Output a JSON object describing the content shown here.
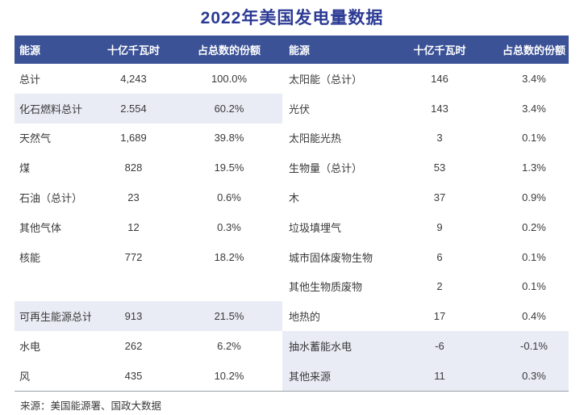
{
  "title": "2022年美国发电量数据",
  "source": "来源：美国能源署、国政大数据",
  "colors": {
    "title_text": "#2B3A94",
    "header_bg": "#3B5296",
    "header_text": "#FFFFFF",
    "row_highlight_bg": "#E9ECF5",
    "body_text": "#3A3A3A"
  },
  "chart_data": {
    "type": "table",
    "title": "2022年美国发电量数据",
    "source_note": "来源：美国能源署、国政大数据",
    "columns": [
      "能源",
      "十亿千瓦时",
      "占总数的份额"
    ],
    "left_rows": [
      {
        "name": "总计",
        "value": "4,243",
        "share": "100.0%",
        "highlight": false
      },
      {
        "name": "化石燃料总计",
        "value": "2.554",
        "share": "60.2%",
        "highlight": true
      },
      {
        "name": "天然气",
        "value": "1,689",
        "share": "39.8%",
        "highlight": false
      },
      {
        "name": "煤",
        "value": "828",
        "share": "19.5%",
        "highlight": false
      },
      {
        "name": "石油（总计）",
        "value": "23",
        "share": "0.6%",
        "highlight": false
      },
      {
        "name": "其他气体",
        "value": "12",
        "share": "0.3%",
        "highlight": false
      },
      {
        "name": "核能",
        "value": "772",
        "share": "18.2%",
        "highlight": false
      },
      {
        "name": "",
        "value": "",
        "share": "",
        "highlight": false
      },
      {
        "name": "可再生能源总计",
        "value": "913",
        "share": "21.5%",
        "highlight": true
      },
      {
        "name": "水电",
        "value": "262",
        "share": "6.2%",
        "highlight": false
      },
      {
        "name": "风",
        "value": "435",
        "share": "10.2%",
        "highlight": false
      }
    ],
    "right_rows": [
      {
        "name": "太阳能（总计）",
        "value": "146",
        "share": "3.4%",
        "highlight": false
      },
      {
        "name": "光伏",
        "value": "143",
        "share": "3.4%",
        "highlight": false
      },
      {
        "name": "太阳能光热",
        "value": "3",
        "share": "0.1%",
        "highlight": false
      },
      {
        "name": "生物量（总计）",
        "value": "53",
        "share": "1.3%",
        "highlight": false
      },
      {
        "name": "木",
        "value": "37",
        "share": "0.9%",
        "highlight": false
      },
      {
        "name": "垃圾填埋气",
        "value": "9",
        "share": "0.2%",
        "highlight": false
      },
      {
        "name": "城市固体废物生物",
        "value": "6",
        "share": "0.1%",
        "highlight": false
      },
      {
        "name": "其他生物质废物",
        "value": "2",
        "share": "0.1%",
        "highlight": false
      },
      {
        "name": "地热的",
        "value": "17",
        "share": "0.4%",
        "highlight": false
      },
      {
        "name": "抽水蓄能水电",
        "value": "-6",
        "share": "-0.1%",
        "highlight": true
      },
      {
        "name": "其他来源",
        "value": "11",
        "share": "0.3%",
        "highlight": true
      }
    ]
  }
}
